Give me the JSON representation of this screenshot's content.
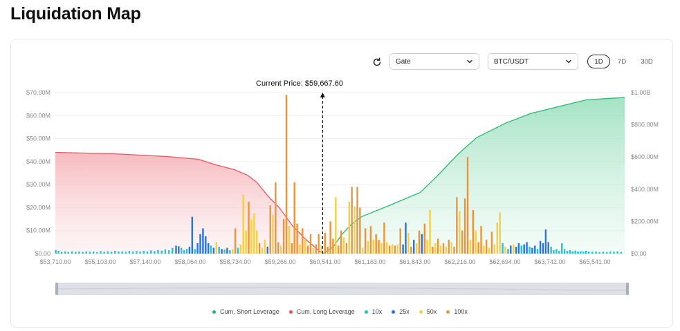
{
  "page": {
    "title": "Liquidation Map"
  },
  "controls": {
    "exchange": "Gate",
    "pair": "BTC/USDT",
    "ranges": [
      "1D",
      "7D",
      "30D"
    ],
    "active_range": "1D"
  },
  "colors": {
    "short": "#2bb673",
    "long": "#e8565e",
    "x10": "#23c2d4",
    "x25": "#2b73d6",
    "x50": "#f6cf45",
    "x100": "#ec9538",
    "grid": "#eeeeee",
    "axis_text": "#8a8a8a"
  },
  "legend": [
    {
      "label": "Cum. Short Leverage",
      "color": "#2bb673"
    },
    {
      "label": "Cum. Long Leverage",
      "color": "#e8565e"
    },
    {
      "label": "10x",
      "color": "#23c2d4"
    },
    {
      "label": "25x",
      "color": "#2b73d6"
    },
    {
      "label": "50x",
      "color": "#f6cf45"
    },
    {
      "label": "100x",
      "color": "#ec9538"
    }
  ],
  "chart_data": {
    "type": "bar",
    "current_price": 59667.6,
    "current_price_label": "Current Price: $59,667.60",
    "x_ticks": [
      "$53,710.00",
      "$55,103.00",
      "$57,140.00",
      "$58,064.00",
      "$58,734.00",
      "$59,266.00",
      "$60,541.00",
      "$61,163.00",
      "$61,843.00",
      "$62,216.00",
      "$62,694.00",
      "$63,742.00",
      "$65,541.00"
    ],
    "y_left": {
      "ticks": [
        "$0.00",
        "$10.00M",
        "$20.00M",
        "$30.00M",
        "$40.00M",
        "$50.00M",
        "$60.00M",
        "$70.00M"
      ],
      "max": 70
    },
    "y_right": {
      "ticks": [
        "$0.00",
        "$200.00M",
        "$400.00M",
        "$600.00M",
        "$800.00M",
        "$1.00B"
      ],
      "max": 1000
    },
    "grid": true,
    "cum_long_points": [
      [
        53710,
        44
      ],
      [
        55000,
        43.4
      ],
      [
        56200,
        42.2
      ],
      [
        56900,
        41
      ],
      [
        57300,
        38.5
      ],
      [
        57700,
        36.5
      ],
      [
        58000,
        34
      ],
      [
        58200,
        31
      ],
      [
        58450,
        25
      ],
      [
        58700,
        20
      ],
      [
        59000,
        12
      ],
      [
        59300,
        6
      ],
      [
        59667.6,
        0
      ]
    ],
    "cum_short_points": [
      [
        59667.6,
        0
      ],
      [
        59900,
        40
      ],
      [
        60100,
        120
      ],
      [
        60300,
        180
      ],
      [
        60541,
        230
      ],
      [
        61163,
        300
      ],
      [
        61843,
        380
      ],
      [
        62216,
        480
      ],
      [
        62694,
        620
      ],
      [
        63100,
        720
      ],
      [
        63742,
        810
      ],
      [
        64300,
        870
      ],
      [
        65541,
        955
      ],
      [
        66400,
        970
      ]
    ],
    "bars": [
      {
        "p": 53720,
        "v": 1.6,
        "lev": "10x"
      },
      {
        "p": 53780,
        "v": 1.2,
        "lev": "10x"
      },
      {
        "p": 53850,
        "v": 0.8,
        "lev": "10x"
      },
      {
        "p": 53930,
        "v": 1.0,
        "lev": "10x"
      },
      {
        "p": 54000,
        "v": 0.7,
        "lev": "10x"
      },
      {
        "p": 54080,
        "v": 1.0,
        "lev": "10x"
      },
      {
        "p": 54160,
        "v": 0.8,
        "lev": "10x"
      },
      {
        "p": 54240,
        "v": 0.9,
        "lev": "10x"
      },
      {
        "p": 54320,
        "v": 0.7,
        "lev": "10x"
      },
      {
        "p": 54400,
        "v": 1.0,
        "lev": "10x"
      },
      {
        "p": 54480,
        "v": 0.8,
        "lev": "10x"
      },
      {
        "p": 54560,
        "v": 0.9,
        "lev": "10x"
      },
      {
        "p": 54640,
        "v": 0.7,
        "lev": "10x"
      },
      {
        "p": 54720,
        "v": 1.1,
        "lev": "10x"
      },
      {
        "p": 54800,
        "v": 0.8,
        "lev": "10x"
      },
      {
        "p": 54880,
        "v": 1.0,
        "lev": "10x"
      },
      {
        "p": 54960,
        "v": 0.8,
        "lev": "10x"
      },
      {
        "p": 55040,
        "v": 1.2,
        "lev": "10x"
      },
      {
        "p": 55120,
        "v": 0.9,
        "lev": "10x"
      },
      {
        "p": 55200,
        "v": 1.0,
        "lev": "10x"
      },
      {
        "p": 55280,
        "v": 0.8,
        "lev": "10x"
      },
      {
        "p": 55360,
        "v": 1.2,
        "lev": "10x"
      },
      {
        "p": 55440,
        "v": 0.9,
        "lev": "10x"
      },
      {
        "p": 55520,
        "v": 1.1,
        "lev": "10x"
      },
      {
        "p": 55600,
        "v": 0.9,
        "lev": "10x"
      },
      {
        "p": 55680,
        "v": 1.2,
        "lev": "10x"
      },
      {
        "p": 55760,
        "v": 1.0,
        "lev": "10x"
      },
      {
        "p": 55840,
        "v": 1.4,
        "lev": "10x"
      },
      {
        "p": 55920,
        "v": 1.1,
        "lev": "10x"
      },
      {
        "p": 56000,
        "v": 1.6,
        "lev": "10x"
      },
      {
        "p": 56080,
        "v": 1.3,
        "lev": "10x"
      },
      {
        "p": 56160,
        "v": 1.8,
        "lev": "10x"
      },
      {
        "p": 56240,
        "v": 1.5,
        "lev": "10x"
      },
      {
        "p": 56320,
        "v": 2.5,
        "lev": "10x"
      },
      {
        "p": 56400,
        "v": 3.5,
        "lev": "25x"
      },
      {
        "p": 56460,
        "v": 3.2,
        "lev": "25x"
      },
      {
        "p": 56520,
        "v": 2.5,
        "lev": "10x"
      },
      {
        "p": 56580,
        "v": 1.5,
        "lev": "10x"
      },
      {
        "p": 56640,
        "v": 2.0,
        "lev": "10x"
      },
      {
        "p": 56700,
        "v": 3.0,
        "lev": "25x"
      },
      {
        "p": 56760,
        "v": 16.0,
        "lev": "25x"
      },
      {
        "p": 56820,
        "v": 2.0,
        "lev": "10x"
      },
      {
        "p": 56880,
        "v": 4.5,
        "lev": "25x"
      },
      {
        "p": 56940,
        "v": 8.5,
        "lev": "25x"
      },
      {
        "p": 57000,
        "v": 11.0,
        "lev": "25x"
      },
      {
        "p": 57060,
        "v": 7.5,
        "lev": "25x"
      },
      {
        "p": 57120,
        "v": 4.5,
        "lev": "25x"
      },
      {
        "p": 57180,
        "v": 3.5,
        "lev": "10x"
      },
      {
        "p": 57240,
        "v": 2.5,
        "lev": "25x"
      },
      {
        "p": 57300,
        "v": 5.0,
        "lev": "50x"
      },
      {
        "p": 57360,
        "v": 3.0,
        "lev": "10x"
      },
      {
        "p": 57420,
        "v": 2.0,
        "lev": "25x"
      },
      {
        "p": 57480,
        "v": 1.8,
        "lev": "10x"
      },
      {
        "p": 57540,
        "v": 2.5,
        "lev": "25x"
      },
      {
        "p": 57600,
        "v": 1.5,
        "lev": "10x"
      },
      {
        "p": 57660,
        "v": 2.0,
        "lev": "50x"
      },
      {
        "p": 57720,
        "v": 11.0,
        "lev": "100x"
      },
      {
        "p": 57780,
        "v": 2.5,
        "lev": "10x"
      },
      {
        "p": 57840,
        "v": 4.0,
        "lev": "50x"
      },
      {
        "p": 57900,
        "v": 25.5,
        "lev": "50x"
      },
      {
        "p": 57960,
        "v": 10.0,
        "lev": "50x"
      },
      {
        "p": 58020,
        "v": 22.5,
        "lev": "100x"
      },
      {
        "p": 58080,
        "v": 15.0,
        "lev": "50x"
      },
      {
        "p": 58140,
        "v": 17.5,
        "lev": "50x"
      },
      {
        "p": 58200,
        "v": 10.0,
        "lev": "50x"
      },
      {
        "p": 58260,
        "v": 4.5,
        "lev": "100x"
      },
      {
        "p": 58320,
        "v": 2.5,
        "lev": "50x"
      },
      {
        "p": 58380,
        "v": 6.0,
        "lev": "50x"
      },
      {
        "p": 58440,
        "v": 3.0,
        "lev": "25x"
      },
      {
        "p": 58500,
        "v": 21.0,
        "lev": "100x"
      },
      {
        "p": 58560,
        "v": 17.0,
        "lev": "50x"
      },
      {
        "p": 58620,
        "v": 31.0,
        "lev": "100x"
      },
      {
        "p": 58680,
        "v": 5.0,
        "lev": "100x"
      },
      {
        "p": 58740,
        "v": 3.5,
        "lev": "50x"
      },
      {
        "p": 58800,
        "v": 15.0,
        "lev": "100x"
      },
      {
        "p": 58860,
        "v": 69.0,
        "lev": "100x"
      },
      {
        "p": 58920,
        "v": 12.0,
        "lev": "50x"
      },
      {
        "p": 58980,
        "v": 4.5,
        "lev": "100x"
      },
      {
        "p": 59040,
        "v": 31.0,
        "lev": "100x"
      },
      {
        "p": 59100,
        "v": 13.0,
        "lev": "100x"
      },
      {
        "p": 59160,
        "v": 4.0,
        "lev": "50x"
      },
      {
        "p": 59220,
        "v": 11.0,
        "lev": "100x"
      },
      {
        "p": 59280,
        "v": 6.0,
        "lev": "50x"
      },
      {
        "p": 59340,
        "v": 3.5,
        "lev": "100x"
      },
      {
        "p": 59400,
        "v": 8.5,
        "lev": "100x"
      },
      {
        "p": 59460,
        "v": 2.5,
        "lev": "50x"
      },
      {
        "p": 59520,
        "v": 4.0,
        "lev": "100x"
      },
      {
        "p": 59580,
        "v": 8.5,
        "lev": "100x"
      },
      {
        "p": 59640,
        "v": 3.5,
        "lev": "50x"
      },
      {
        "p": 59720,
        "v": 9.0,
        "lev": "100x"
      },
      {
        "p": 59780,
        "v": 3.0,
        "lev": "100x"
      },
      {
        "p": 59840,
        "v": 14.0,
        "lev": "100x"
      },
      {
        "p": 59900,
        "v": 6.5,
        "lev": "100x"
      },
      {
        "p": 59960,
        "v": 24.5,
        "lev": "50x"
      },
      {
        "p": 60020,
        "v": 3.5,
        "lev": "100x"
      },
      {
        "p": 60080,
        "v": 10.0,
        "lev": "100x"
      },
      {
        "p": 60140,
        "v": 7.0,
        "lev": "50x"
      },
      {
        "p": 60200,
        "v": 4.5,
        "lev": "100x"
      },
      {
        "p": 60260,
        "v": 22.5,
        "lev": "50x"
      },
      {
        "p": 60320,
        "v": 29.0,
        "lev": "100x"
      },
      {
        "p": 60380,
        "v": 20.5,
        "lev": "50x"
      },
      {
        "p": 60440,
        "v": 29.0,
        "lev": "100x"
      },
      {
        "p": 60500,
        "v": 20.0,
        "lev": "100x"
      },
      {
        "p": 60560,
        "v": 2.5,
        "lev": "50x"
      },
      {
        "p": 60620,
        "v": 11.0,
        "lev": "100x"
      },
      {
        "p": 60680,
        "v": 5.5,
        "lev": "50x"
      },
      {
        "p": 60740,
        "v": 12.0,
        "lev": "100x"
      },
      {
        "p": 60800,
        "v": 6.0,
        "lev": "50x"
      },
      {
        "p": 60860,
        "v": 8.5,
        "lev": "100x"
      },
      {
        "p": 60920,
        "v": 6.0,
        "lev": "100x"
      },
      {
        "p": 60980,
        "v": 4.5,
        "lev": "50x"
      },
      {
        "p": 61040,
        "v": 13.5,
        "lev": "100x"
      },
      {
        "p": 61100,
        "v": 5.0,
        "lev": "50x"
      },
      {
        "p": 61160,
        "v": 3.5,
        "lev": "100x"
      },
      {
        "p": 61220,
        "v": 4.0,
        "lev": "50x"
      },
      {
        "p": 61280,
        "v": 3.5,
        "lev": "100x"
      },
      {
        "p": 61340,
        "v": 4.0,
        "lev": "50x"
      },
      {
        "p": 61400,
        "v": 11.0,
        "lev": "100x"
      },
      {
        "p": 61460,
        "v": 4.0,
        "lev": "25x"
      },
      {
        "p": 61520,
        "v": 13.5,
        "lev": "25x"
      },
      {
        "p": 61580,
        "v": 9.0,
        "lev": "50x"
      },
      {
        "p": 61640,
        "v": 3.0,
        "lev": "100x"
      },
      {
        "p": 61700,
        "v": 6.0,
        "lev": "25x"
      },
      {
        "p": 61760,
        "v": 4.5,
        "lev": "50x"
      },
      {
        "p": 61820,
        "v": 10.0,
        "lev": "100x"
      },
      {
        "p": 61880,
        "v": 8.5,
        "lev": "25x"
      },
      {
        "p": 61940,
        "v": 13.0,
        "lev": "100x"
      },
      {
        "p": 62000,
        "v": 6.0,
        "lev": "50x"
      },
      {
        "p": 62060,
        "v": 19.0,
        "lev": "50x"
      },
      {
        "p": 62120,
        "v": 3.0,
        "lev": "100x"
      },
      {
        "p": 62180,
        "v": 4.5,
        "lev": "50x"
      },
      {
        "p": 62240,
        "v": 6.5,
        "lev": "100x"
      },
      {
        "p": 62300,
        "v": 3.5,
        "lev": "50x"
      },
      {
        "p": 62360,
        "v": 4.5,
        "lev": "100x"
      },
      {
        "p": 62420,
        "v": 3.0,
        "lev": "50x"
      },
      {
        "p": 62480,
        "v": 6.0,
        "lev": "100x"
      },
      {
        "p": 62540,
        "v": 5.0,
        "lev": "50x"
      },
      {
        "p": 62600,
        "v": 3.0,
        "lev": "100x"
      },
      {
        "p": 62660,
        "v": 24.5,
        "lev": "100x"
      },
      {
        "p": 62720,
        "v": 18.5,
        "lev": "50x"
      },
      {
        "p": 62780,
        "v": 10.0,
        "lev": "100x"
      },
      {
        "p": 62840,
        "v": 24.0,
        "lev": "100x"
      },
      {
        "p": 62900,
        "v": 42.0,
        "lev": "100x"
      },
      {
        "p": 62960,
        "v": 6.0,
        "lev": "50x"
      },
      {
        "p": 63020,
        "v": 19.0,
        "lev": "100x"
      },
      {
        "p": 63080,
        "v": 10.0,
        "lev": "50x"
      },
      {
        "p": 63140,
        "v": 5.0,
        "lev": "100x"
      },
      {
        "p": 63200,
        "v": 12.0,
        "lev": "100x"
      },
      {
        "p": 63260,
        "v": 3.5,
        "lev": "50x"
      },
      {
        "p": 63320,
        "v": 6.0,
        "lev": "100x"
      },
      {
        "p": 63380,
        "v": 2.5,
        "lev": "50x"
      },
      {
        "p": 63440,
        "v": 9.5,
        "lev": "100x"
      },
      {
        "p": 63500,
        "v": 4.0,
        "lev": "50x"
      },
      {
        "p": 63560,
        "v": 13.5,
        "lev": "50x"
      },
      {
        "p": 63620,
        "v": 18.0,
        "lev": "50x"
      },
      {
        "p": 63680,
        "v": 4.5,
        "lev": "10x"
      },
      {
        "p": 63740,
        "v": 3.0,
        "lev": "50x"
      },
      {
        "p": 63800,
        "v": 2.0,
        "lev": "10x"
      },
      {
        "p": 63860,
        "v": 3.5,
        "lev": "25x"
      },
      {
        "p": 63920,
        "v": 4.0,
        "lev": "50x"
      },
      {
        "p": 63980,
        "v": 3.0,
        "lev": "25x"
      },
      {
        "p": 64040,
        "v": 4.5,
        "lev": "25x"
      },
      {
        "p": 64100,
        "v": 3.5,
        "lev": "10x"
      },
      {
        "p": 64160,
        "v": 4.0,
        "lev": "25x"
      },
      {
        "p": 64220,
        "v": 5.0,
        "lev": "25x"
      },
      {
        "p": 64280,
        "v": 3.0,
        "lev": "10x"
      },
      {
        "p": 64340,
        "v": 2.5,
        "lev": "25x"
      },
      {
        "p": 64400,
        "v": 3.5,
        "lev": "25x"
      },
      {
        "p": 64460,
        "v": 2.0,
        "lev": "10x"
      },
      {
        "p": 64520,
        "v": 5.5,
        "lev": "25x"
      },
      {
        "p": 64580,
        "v": 4.5,
        "lev": "25x"
      },
      {
        "p": 64640,
        "v": 10.5,
        "lev": "25x"
      },
      {
        "p": 64700,
        "v": 5.0,
        "lev": "25x"
      },
      {
        "p": 64760,
        "v": 3.0,
        "lev": "10x"
      },
      {
        "p": 64820,
        "v": 1.5,
        "lev": "10x"
      },
      {
        "p": 64880,
        "v": 2.0,
        "lev": "10x"
      },
      {
        "p": 64940,
        "v": 1.2,
        "lev": "10x"
      },
      {
        "p": 65000,
        "v": 4.5,
        "lev": "10x"
      },
      {
        "p": 65060,
        "v": 2.0,
        "lev": "10x"
      },
      {
        "p": 65120,
        "v": 1.2,
        "lev": "10x"
      },
      {
        "p": 65180,
        "v": 1.5,
        "lev": "10x"
      },
      {
        "p": 65240,
        "v": 1.0,
        "lev": "10x"
      },
      {
        "p": 65300,
        "v": 1.3,
        "lev": "10x"
      },
      {
        "p": 65360,
        "v": 0.9,
        "lev": "10x"
      },
      {
        "p": 65420,
        "v": 1.0,
        "lev": "10x"
      },
      {
        "p": 65480,
        "v": 0.8,
        "lev": "10x"
      },
      {
        "p": 65540,
        "v": 1.2,
        "lev": "10x"
      },
      {
        "p": 65600,
        "v": 0.9,
        "lev": "10x"
      },
      {
        "p": 65680,
        "v": 0.8,
        "lev": "10x"
      },
      {
        "p": 65760,
        "v": 0.9,
        "lev": "10x"
      },
      {
        "p": 65840,
        "v": 0.7,
        "lev": "10x"
      },
      {
        "p": 65920,
        "v": 0.8,
        "lev": "10x"
      },
      {
        "p": 66000,
        "v": 0.7,
        "lev": "10x"
      },
      {
        "p": 66080,
        "v": 0.9,
        "lev": "10x"
      },
      {
        "p": 66160,
        "v": 0.8,
        "lev": "10x"
      },
      {
        "p": 66240,
        "v": 1.0,
        "lev": "10x"
      },
      {
        "p": 66320,
        "v": 0.7,
        "lev": "10x"
      }
    ]
  }
}
